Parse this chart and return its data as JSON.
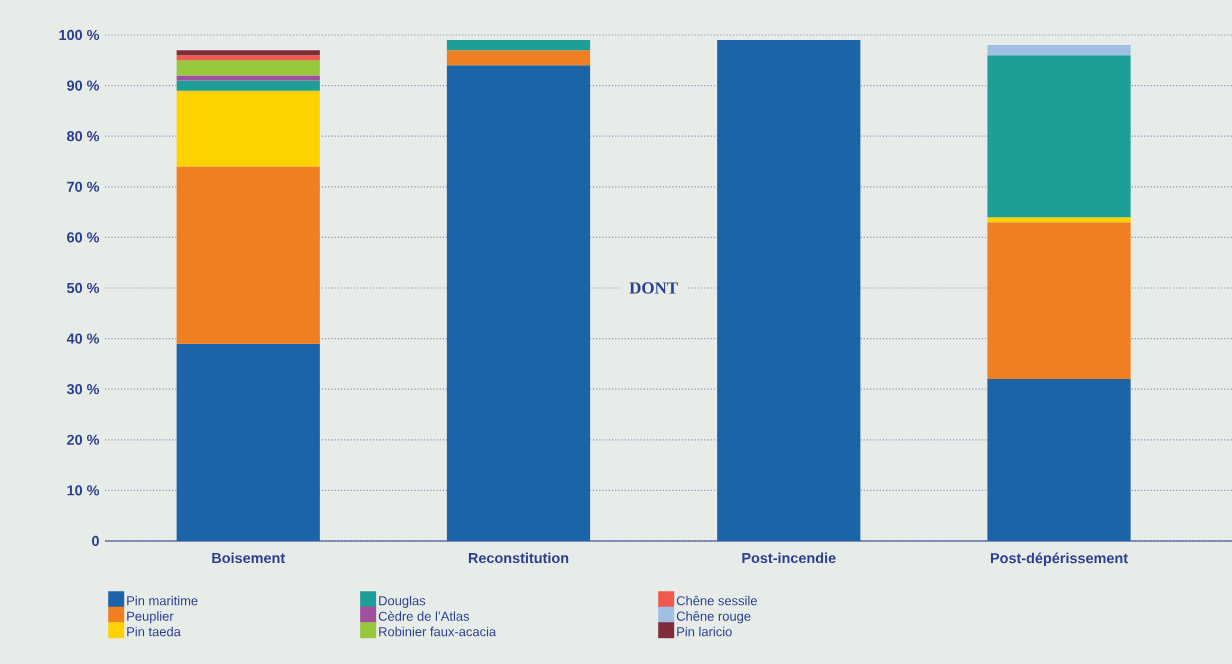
{
  "chart_data": {
    "type": "bar",
    "stacked": true,
    "categories": [
      "Boisement",
      "Reconstitution",
      "Post-incendie",
      "Post-dépérissement"
    ],
    "series": [
      {
        "name": "Pin maritime",
        "color": "#1b64a8",
        "values": [
          39,
          94,
          99,
          32
        ]
      },
      {
        "name": "Peuplier",
        "color": "#f07f22",
        "values": [
          35,
          3,
          null,
          31
        ]
      },
      {
        "name": "Pin taeda",
        "color": "#fdd200",
        "values": [
          15,
          null,
          null,
          1
        ]
      },
      {
        "name": "Douglas",
        "color": "#1d9e96",
        "values": [
          2,
          2,
          null,
          32
        ]
      },
      {
        "name": "Cèdre de l’Atlas",
        "color": "#a0509f",
        "values": [
          1,
          null,
          null,
          null
        ]
      },
      {
        "name": "Robinier faux-acacia",
        "color": "#97c83c",
        "values": [
          3,
          null,
          null,
          null
        ]
      },
      {
        "name": "Chêne sessile",
        "color": "#ef5a4c",
        "values": [
          1,
          null,
          null,
          null
        ]
      },
      {
        "name": "Chêne rouge",
        "color": "#9fc0e4",
        "values": [
          null,
          null,
          null,
          2
        ]
      },
      {
        "name": "Pin laricio",
        "color": "#7f2d3a",
        "values": [
          1,
          null,
          null,
          null
        ]
      }
    ],
    "ylim": [
      0,
      100
    ],
    "yticks": [
      0,
      {
        "value": 10,
        "label": "10 %"
      },
      {
        "value": 20,
        "label": "20 %"
      },
      {
        "value": 30,
        "label": "30 %"
      },
      {
        "value": 40,
        "label": "40 %"
      },
      {
        "value": 50,
        "label": "50 %"
      },
      {
        "value": 60,
        "label": "60 %"
      },
      {
        "value": 70,
        "label": "70 %"
      },
      {
        "value": 80,
        "label": "80 %"
      },
      {
        "value": 90,
        "label": "90 %"
      },
      {
        "value": 100,
        "label": "100 %"
      }
    ],
    "grid": "y",
    "legend": "bottom",
    "annotations": [
      "DONT"
    ]
  }
}
